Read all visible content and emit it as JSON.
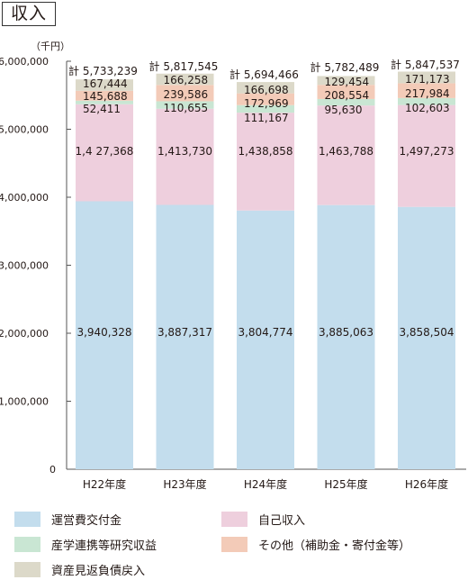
{
  "title": "収入",
  "unit": "（千円）",
  "chart_data": {
    "type": "bar",
    "stacked": true,
    "categories": [
      "H22年度",
      "H23年度",
      "H24年度",
      "H25年度",
      "H26年度"
    ],
    "ylim": [
      0,
      6000000
    ],
    "yticks": [
      {
        "value": 0,
        "label": "0"
      },
      {
        "value": 1000000,
        "label": "1,000,000"
      },
      {
        "value": 2000000,
        "label": "2,000,000"
      },
      {
        "value": 3000000,
        "label": "3,000,000"
      },
      {
        "value": 4000000,
        "label": "4,000,000"
      },
      {
        "value": 5000000,
        "label": "5,000,000"
      },
      {
        "value": 6000000,
        "label": "6,000,000"
      }
    ],
    "series": [
      {
        "name": "運営費交付金",
        "color": "#c3dded",
        "values": [
          3940328,
          3887317,
          3804774,
          3885063,
          3858504
        ],
        "labels": [
          "3,940,328",
          "3,887,317",
          "3,804,774",
          "3,885,063",
          "3,858,504"
        ]
      },
      {
        "name": "自己収入",
        "color": "#eecfdd",
        "values": [
          1427368,
          1413730,
          1438858,
          1463788,
          1497273
        ],
        "labels": [
          "1,4 27,368",
          "1,413,730",
          "1,438,858",
          "1,463,788",
          "1,497,273"
        ]
      },
      {
        "name": "産学連携等研究収益",
        "color": "#c9e6d3",
        "values": [
          52411,
          110655,
          111167,
          95630,
          102603
        ],
        "labels": [
          "52,411",
          "110,655",
          "111,167",
          "95,630",
          "102,603"
        ]
      },
      {
        "name": "その他（補助金・寄付金等）",
        "color": "#f3cbb8",
        "values": [
          145688,
          239586,
          172969,
          208554,
          217984
        ],
        "labels": [
          "145,688",
          "239,586",
          "172,969",
          "208,554",
          "217,984"
        ]
      },
      {
        "name": "資産見返負債戻入",
        "color": "#dcd9c9",
        "values": [
          167444,
          166258,
          166698,
          129454,
          171173
        ],
        "labels": [
          "167,444",
          "166,258",
          "166,698",
          "129,454",
          "171,173"
        ]
      }
    ],
    "totals": [
      "計 5,733,239",
      "計 5,817,545",
      "計 5,694,466",
      "計 5,782,489",
      "計 5,847,537"
    ],
    "legend_position": "bottom"
  }
}
